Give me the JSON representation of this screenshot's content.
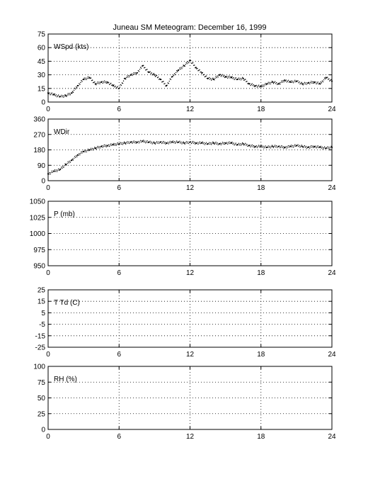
{
  "title": "Juneau SM Meteogram:   December 16, 1999",
  "chart_data": [
    {
      "type": "scatter",
      "label": "WSpd (kts)",
      "ylim": [
        0,
        75
      ],
      "yticks": [
        0,
        15,
        30,
        45,
        60,
        75
      ],
      "xlim": [
        0,
        24
      ],
      "xticks": [
        0,
        6,
        12,
        18,
        24
      ],
      "grid": true,
      "series": [
        {
          "x": [
            0,
            0.5,
            1,
            1.5,
            2,
            2.5,
            3,
            3.5,
            4,
            4.5,
            5,
            5.5,
            6,
            6.5,
            7,
            7.5,
            8,
            8.5,
            9,
            9.5,
            10,
            10.5,
            11,
            11.5,
            12,
            12.5,
            13,
            13.5,
            14,
            14.5,
            15,
            15.5,
            16,
            16.5,
            17,
            17.5,
            18,
            18.5,
            19,
            19.5,
            20,
            20.5,
            21,
            21.5,
            22,
            22.5,
            23,
            23.5,
            24
          ],
          "y": [
            10,
            8,
            6,
            7,
            10,
            18,
            25,
            27,
            20,
            22,
            22,
            18,
            15,
            26,
            30,
            32,
            40,
            33,
            30,
            25,
            18,
            28,
            35,
            40,
            46,
            38,
            32,
            26,
            25,
            30,
            28,
            27,
            25,
            26,
            20,
            18,
            17,
            20,
            22,
            20,
            24,
            22,
            23,
            20,
            21,
            22,
            20,
            27,
            23
          ]
        }
      ]
    },
    {
      "type": "scatter",
      "label": "WDir",
      "ylim": [
        0,
        360
      ],
      "yticks": [
        0,
        90,
        180,
        270,
        360
      ],
      "xlim": [
        0,
        24
      ],
      "xticks": [
        0,
        6,
        12,
        18,
        24
      ],
      "grid": true,
      "series": [
        {
          "x": [
            0,
            0.5,
            1,
            1.5,
            2,
            2.5,
            3,
            3.5,
            4,
            4.5,
            5,
            5.5,
            6,
            6.5,
            7,
            7.5,
            8,
            8.5,
            9,
            9.5,
            10,
            10.5,
            11,
            11.5,
            12,
            12.5,
            13,
            13.5,
            14,
            14.5,
            15,
            15.5,
            16,
            16.5,
            17,
            17.5,
            18,
            18.5,
            19,
            19.5,
            20,
            20.5,
            21,
            21.5,
            22,
            22.5,
            23,
            23.5,
            24
          ],
          "y": [
            40,
            55,
            65,
            95,
            120,
            150,
            170,
            180,
            190,
            200,
            205,
            210,
            215,
            220,
            225,
            225,
            230,
            225,
            220,
            225,
            220,
            225,
            225,
            220,
            225,
            220,
            220,
            215,
            220,
            215,
            220,
            220,
            210,
            215,
            205,
            200,
            200,
            195,
            200,
            200,
            195,
            200,
            205,
            200,
            195,
            200,
            195,
            190,
            195
          ]
        }
      ]
    },
    {
      "type": "scatter",
      "label": "P (mb)",
      "ylim": [
        950,
        1050
      ],
      "yticks": [
        950,
        975,
        1000,
        1025,
        1050
      ],
      "xlim": [
        0,
        24
      ],
      "xticks": [
        0,
        6,
        12,
        18,
        24
      ],
      "grid": true,
      "series": []
    },
    {
      "type": "scatter",
      "label": "T Td (C)",
      "ylim": [
        -25,
        25
      ],
      "yticks": [
        -25,
        -15,
        -5,
        5,
        15,
        25
      ],
      "xlim": [
        0,
        24
      ],
      "xticks": [
        0,
        6,
        12,
        18,
        24
      ],
      "grid": true,
      "series": []
    },
    {
      "type": "scatter",
      "label": "RH (%)",
      "ylim": [
        0,
        100
      ],
      "yticks": [
        0,
        25,
        50,
        75,
        100
      ],
      "xlim": [
        0,
        24
      ],
      "xticks": [
        0,
        6,
        12,
        18,
        24
      ],
      "grid": true,
      "series": []
    }
  ]
}
